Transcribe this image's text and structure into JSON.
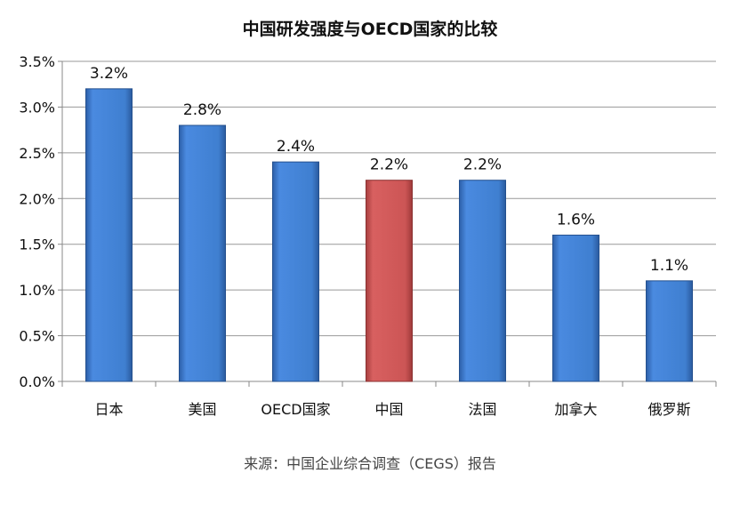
{
  "chart_data": {
    "type": "bar",
    "title": "中国研发强度与OECD国家的比较",
    "source": "来源：中国企业综合调查（CEGS）报告",
    "categories": [
      "日本",
      "美国",
      "OECD国家",
      "中国",
      "法国",
      "加拿大",
      "俄罗斯"
    ],
    "values": [
      3.2,
      2.8,
      2.4,
      2.2,
      2.2,
      1.6,
      1.1
    ],
    "data_labels": [
      "3.2%",
      "2.8%",
      "2.4%",
      "2.2%",
      "2.2%",
      "1.6%",
      "1.1%"
    ],
    "ylim": [
      0,
      3.5
    ],
    "yticks": [
      "0.0%",
      "0.5%",
      "1.0%",
      "1.5%",
      "2.0%",
      "2.5%",
      "3.0%",
      "3.5%"
    ],
    "grid": true,
    "colors": {
      "default": "#3f7fd0",
      "highlight": "#cc5555",
      "highlight_category": "中国"
    }
  }
}
